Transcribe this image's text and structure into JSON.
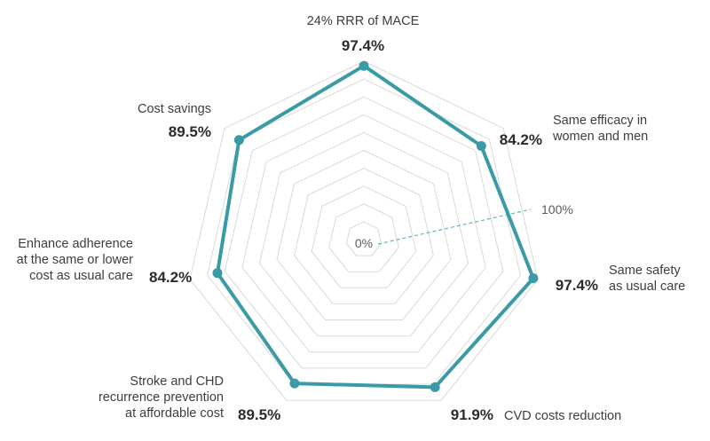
{
  "chart_data": {
    "type": "radar",
    "title": "",
    "range": [
      0,
      100
    ],
    "rings": 10,
    "scale_labels": {
      "min": "0%",
      "max": "100%"
    },
    "axes": [
      {
        "label_lines": [
          "24% RRR of MACE"
        ],
        "value": 97.4,
        "value_label": "97.4%"
      },
      {
        "label_lines": [
          "Same efficacy in",
          "women and men"
        ],
        "value": 84.2,
        "value_label": "84.2%"
      },
      {
        "label_lines": [
          "Same safety",
          "as usual care"
        ],
        "value": 97.4,
        "value_label": "97.4%"
      },
      {
        "label_lines": [
          "CVD costs reduction"
        ],
        "value": 91.9,
        "value_label": "91.9%"
      },
      {
        "label_lines": [
          "Stroke and CHD",
          "recurrence prevention",
          "at affordable cost"
        ],
        "value": 89.5,
        "value_label": "89.5%"
      },
      {
        "label_lines": [
          "Enhance adherence",
          "at the same or lower",
          "cost as usual care"
        ],
        "value": 84.2,
        "value_label": "84.2%"
      },
      {
        "label_lines": [
          "Cost savings"
        ],
        "value": 89.5,
        "value_label": "89.5%"
      }
    ]
  },
  "colors": {
    "series": "#3a9aa5",
    "grid": "#d9d9d9",
    "reference": "#5fb3bb",
    "text": "#3d3d3d",
    "value_text": "#2b2b2b"
  }
}
